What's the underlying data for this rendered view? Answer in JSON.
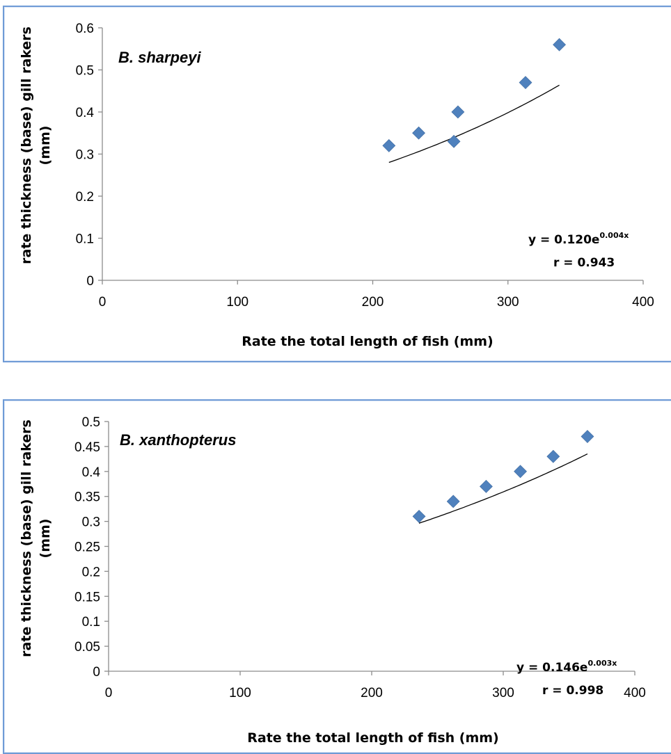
{
  "chart_data": [
    {
      "type": "scatter",
      "species_label": "B. sharpeyi",
      "xlabel": "Rate the total length of fish (mm)",
      "ylabel_line1": "rate thickness (base) gill rakers",
      "ylabel_line2": "(mm)",
      "xlim": [
        0,
        400
      ],
      "ylim": [
        0,
        0.6
      ],
      "x_ticks": [
        "0",
        "100",
        "200",
        "300",
        "400"
      ],
      "y_ticks": [
        "0",
        "0.1",
        "0.2",
        "0.3",
        "0.4",
        "0.5",
        "0.6"
      ],
      "points": [
        {
          "x": 212,
          "y": 0.32
        },
        {
          "x": 234,
          "y": 0.35
        },
        {
          "x": 260,
          "y": 0.33
        },
        {
          "x": 263,
          "y": 0.4
        },
        {
          "x": 313,
          "y": 0.47
        },
        {
          "x": 338,
          "y": 0.56
        }
      ],
      "trendline": {
        "type": "exponential",
        "a": 0.12,
        "b": 0.004,
        "x_start": 212,
        "x_end": 338
      },
      "equation_main": "y = 0.120e",
      "equation_exp": "0.004x",
      "r_text": "r = 0.943",
      "grid": false,
      "legend": "none",
      "colors": {
        "marker": "#4f81bd",
        "trendline": "#000000",
        "axis": "#8c8c8c",
        "frame": "#6f9bd6"
      }
    },
    {
      "type": "scatter",
      "species_label": "B. xanthopterus",
      "xlabel": "Rate the total length of fish (mm)",
      "ylabel_line1": "rate thickness (base) gill rakers",
      "ylabel_line2": "(mm)",
      "xlim": [
        0,
        400
      ],
      "ylim": [
        0,
        0.5
      ],
      "x_ticks": [
        "0",
        "100",
        "200",
        "300",
        "400"
      ],
      "y_ticks": [
        "0",
        "0.05",
        "0.1",
        "0.15",
        "0.2",
        "0.25",
        "0.3",
        "0.35",
        "0.4",
        "0.45",
        "0.5"
      ],
      "points": [
        {
          "x": 236,
          "y": 0.31
        },
        {
          "x": 262,
          "y": 0.34
        },
        {
          "x": 287,
          "y": 0.37
        },
        {
          "x": 313,
          "y": 0.4
        },
        {
          "x": 338,
          "y": 0.43
        },
        {
          "x": 364,
          "y": 0.47
        }
      ],
      "trendline": {
        "type": "exponential",
        "a": 0.146,
        "b": 0.003,
        "x_start": 236,
        "x_end": 364
      },
      "equation_main": "y = 0.146e",
      "equation_exp": "0.003x",
      "r_text": "r = 0.998",
      "grid": false,
      "legend": "none",
      "colors": {
        "marker": "#4f81bd",
        "trendline": "#000000",
        "axis": "#8c8c8c",
        "frame": "#6f9bd6"
      }
    }
  ]
}
